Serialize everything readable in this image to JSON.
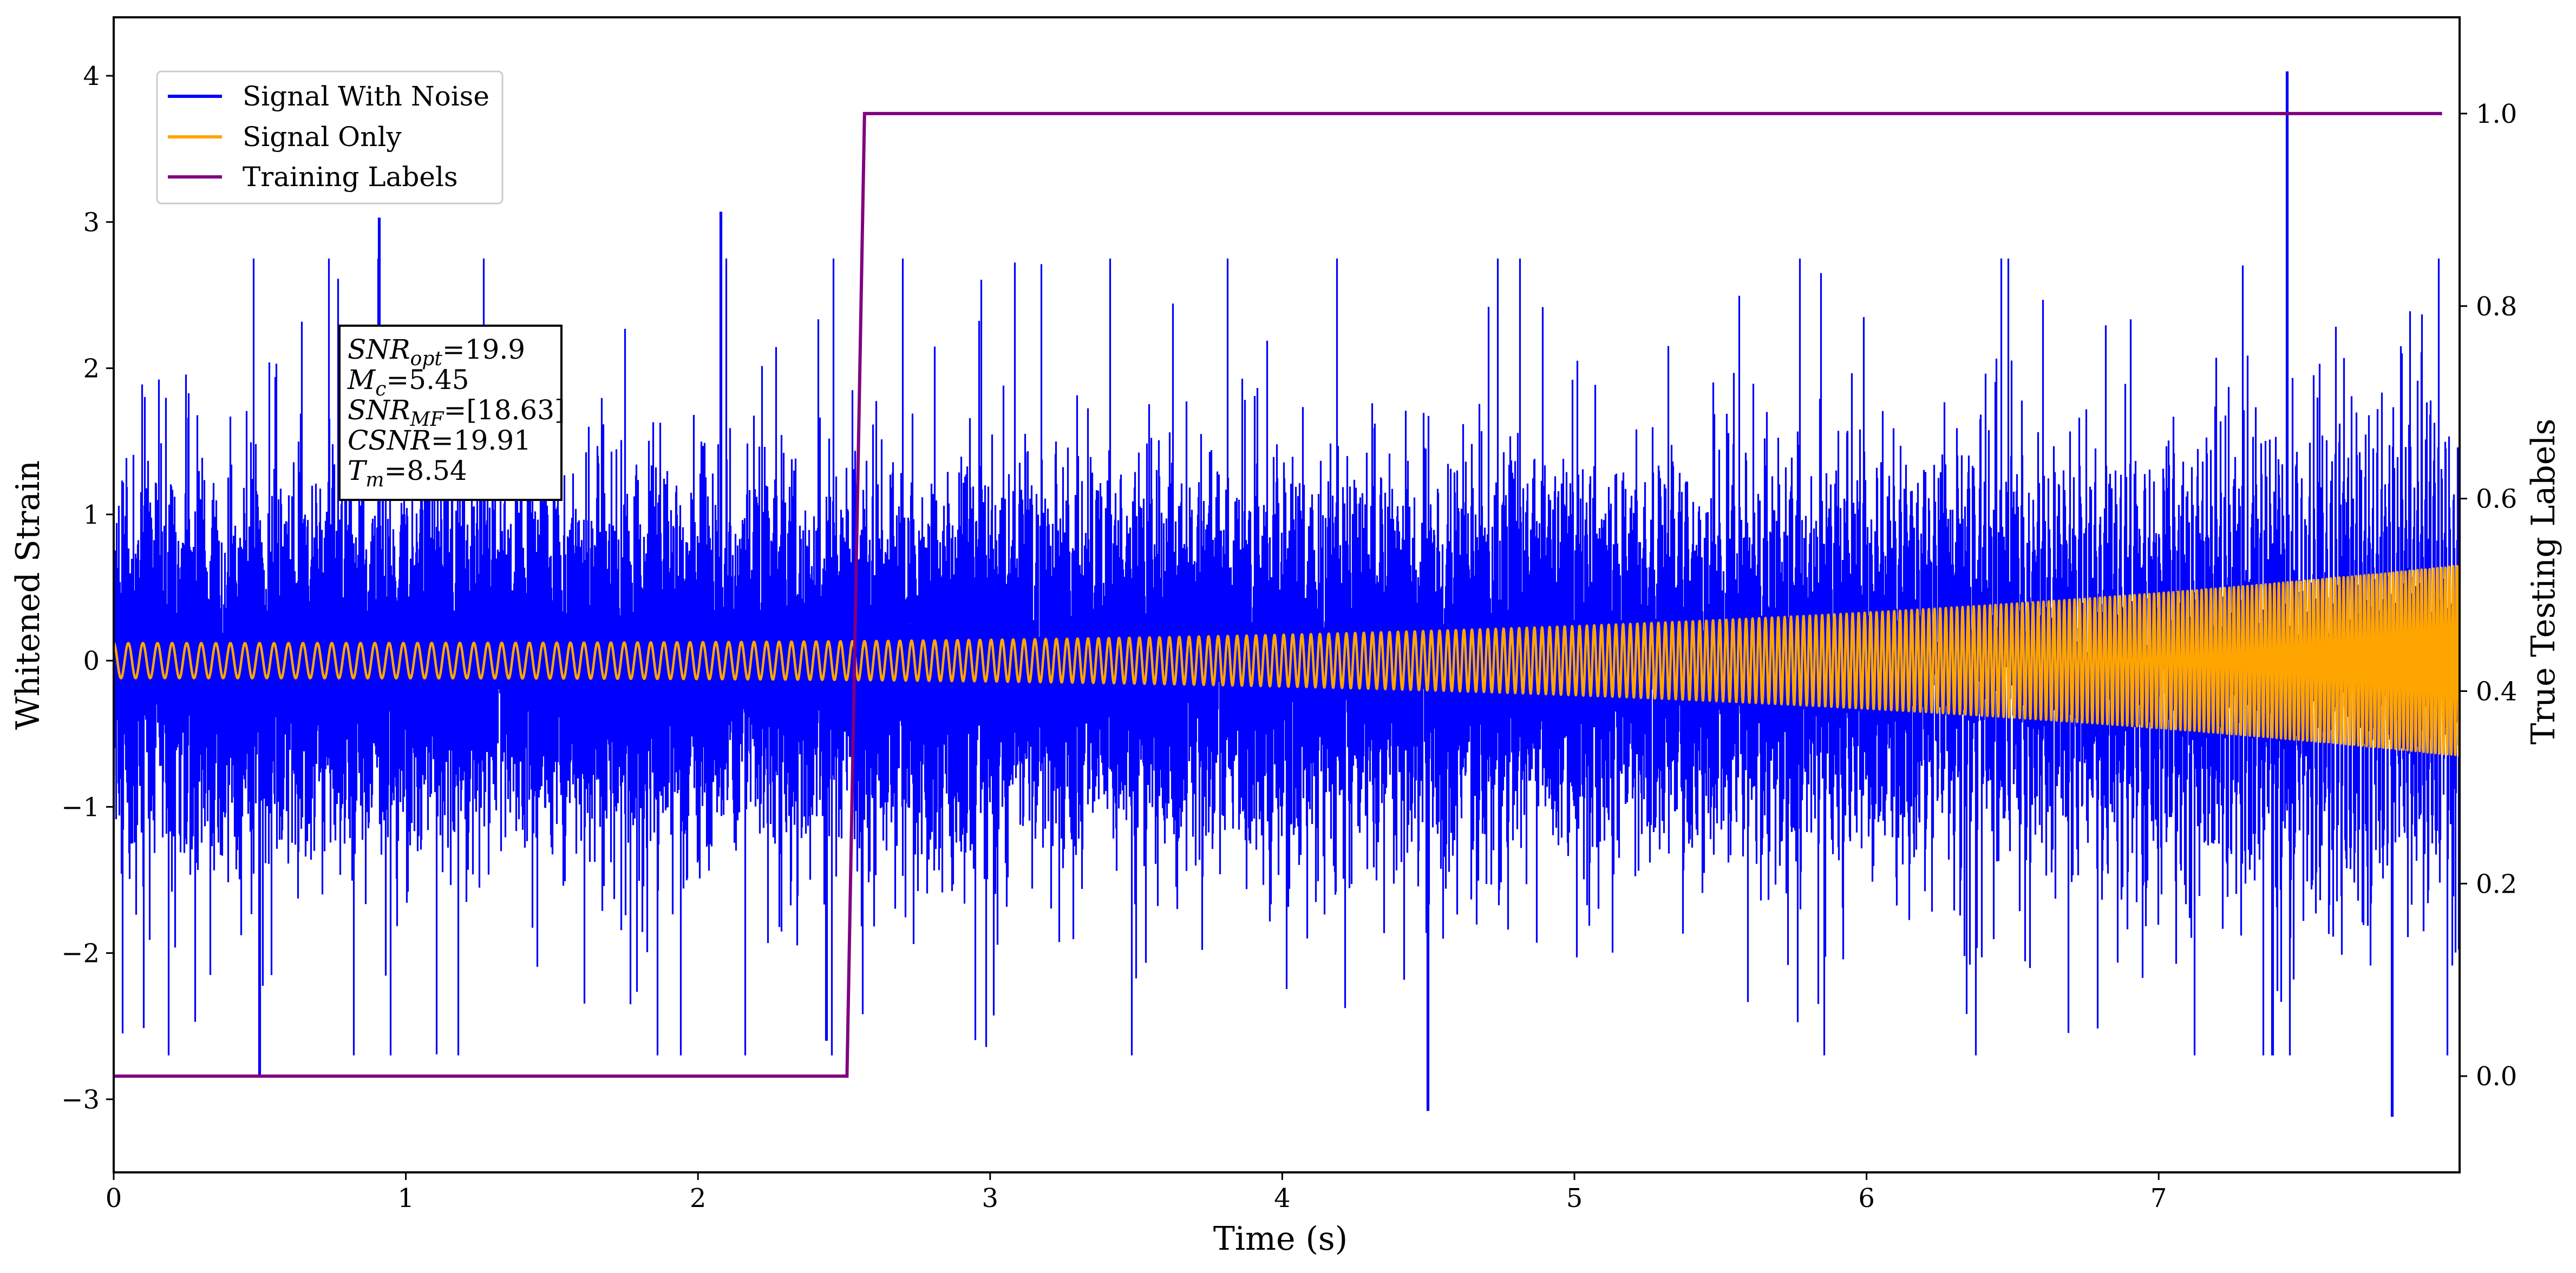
{
  "chart_data": {
    "type": "line",
    "title": "",
    "xlabel": "Time (s)",
    "ylabel": "Whitened Strain",
    "y2label": "True Testing Labels",
    "xlim": [
      0,
      8.03
    ],
    "ylim": [
      -3.5,
      4.4
    ],
    "y2lim": [
      -0.1,
      1.1
    ],
    "xticks": [
      "0",
      "1",
      "2",
      "3",
      "4",
      "5",
      "6",
      "7"
    ],
    "yticks": [
      "−3",
      "−2",
      "−1",
      "0",
      "1",
      "2",
      "3",
      "4"
    ],
    "y2ticks": [
      "0.0",
      "0.2",
      "0.4",
      "0.6",
      "0.8",
      "1.0"
    ],
    "grid": false,
    "legend_position": "top-left",
    "series": [
      {
        "name": "Signal With Noise",
        "color": "#0000ff",
        "axis": "left",
        "description_points": {
          "t_start": 0,
          "t_end": 8.03,
          "approx_std": 0.55,
          "max": 4.03,
          "min": -3.12
        },
        "peaks": [
          {
            "x": 0.91,
            "y": 3.03
          },
          {
            "x": 2.08,
            "y": 3.07
          },
          {
            "x": 7.44,
            "y": 4.03
          },
          {
            "x": 0.5,
            "y": -2.85
          },
          {
            "x": 4.5,
            "y": -3.08
          },
          {
            "x": 7.8,
            "y": -3.12
          },
          {
            "x": 2.44,
            "y": -2.6
          }
        ]
      },
      {
        "name": "Signal Only",
        "color": "#ffa500",
        "axis": "left",
        "description_points": {
          "type": "chirp",
          "amp_start": 0.12,
          "amp_end": 0.65,
          "t_start": 0,
          "t_end": 8.03
        }
      },
      {
        "name": "Training Labels",
        "color": "#800080",
        "axis": "right",
        "x": [
          0,
          2.51,
          2.57,
          7.97
        ],
        "values": [
          0.0,
          0.0,
          1.0,
          1.0
        ]
      }
    ],
    "annotation": {
      "lines": [
        {
          "italic": "SNR",
          "sub": "opt",
          "rest": "=19.9"
        },
        {
          "italic": "M",
          "sub": "c",
          "rest": "=5.45"
        },
        {
          "italic": "SNR",
          "sub": "MF",
          "rest": "=[18.63]"
        },
        {
          "italic": "CSNR",
          "sub": "",
          "rest": "=19.91"
        },
        {
          "italic": "T",
          "sub": "m",
          "rest": "=8.54"
        }
      ]
    }
  }
}
